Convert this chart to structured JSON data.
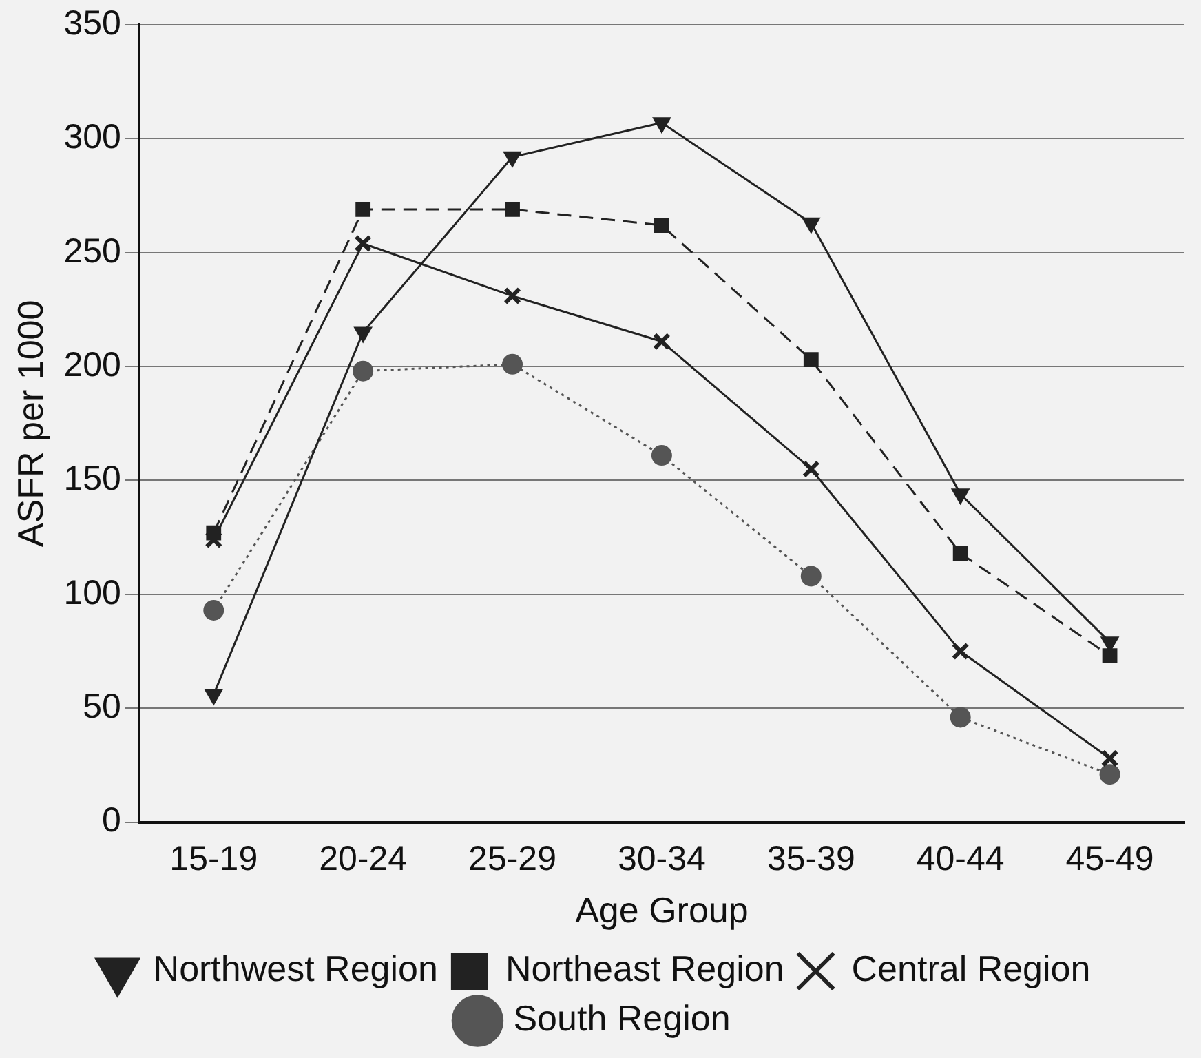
{
  "chart_data": {
    "type": "line",
    "xlabel": "Age Group",
    "ylabel": "ASFR per 1000",
    "categories": [
      "15-19",
      "20-24",
      "25-29",
      "30-34",
      "35-39",
      "40-44",
      "45-49"
    ],
    "series": [
      {
        "name": "Northwest Region",
        "color": "#222222",
        "marker": "triangle",
        "line_style": "solid",
        "values": [
          56,
          215,
          292,
          307,
          263,
          144,
          79
        ]
      },
      {
        "name": "Northeast Region",
        "color": "#222222",
        "marker": "square",
        "line_style": "dashed",
        "values": [
          127,
          269,
          269,
          262,
          203,
          118,
          73
        ]
      },
      {
        "name": "Central Region",
        "color": "#222222",
        "marker": "cross",
        "line_style": "solid",
        "values": [
          124,
          254,
          231,
          211,
          155,
          75,
          28
        ]
      },
      {
        "name": "South Region",
        "color": "#555555",
        "marker": "circle",
        "line_style": "dotted",
        "values": [
          93,
          198,
          201,
          161,
          108,
          46,
          21
        ]
      }
    ],
    "ylim": [
      0,
      350
    ],
    "yticks": [
      0,
      50,
      100,
      150,
      200,
      250,
      300,
      350
    ],
    "grid": "y",
    "legend": "bottom"
  }
}
